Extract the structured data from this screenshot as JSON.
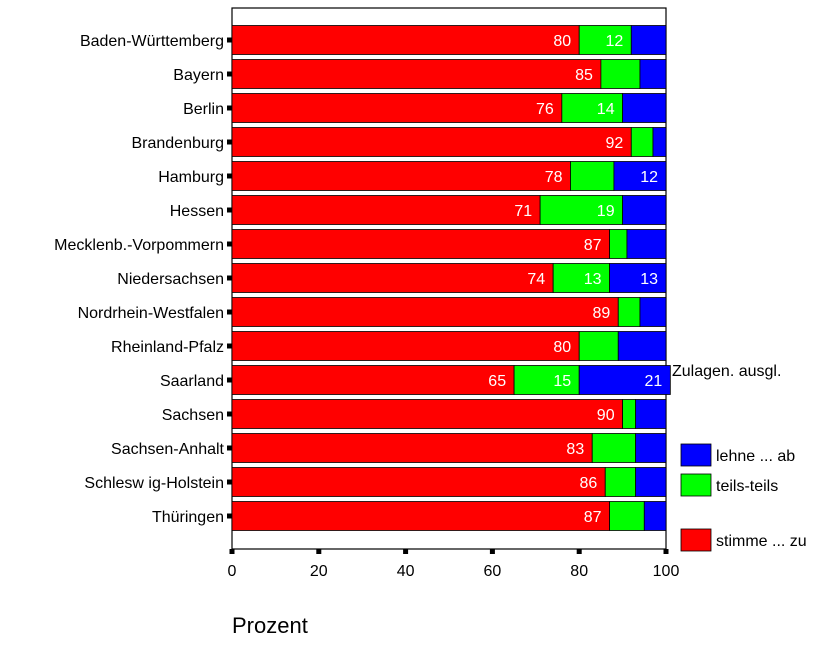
{
  "chart_data": {
    "type": "bar",
    "orientation": "horizontal",
    "stacked": true,
    "categories": [
      "Baden-Württemberg",
      "Bayern",
      "Berlin",
      "Brandenburg",
      "Hamburg",
      "Hessen",
      "Mecklenb.-Vorpommern",
      "Niedersachsen",
      "Nordrhein-Westfalen",
      "Rheinland-Pfalz",
      "Saarland",
      "Sachsen",
      "Sachsen-Anhalt",
      "Schlesw ig-Holstein",
      "Thüringen"
    ],
    "series": [
      {
        "name": "stimme ... zu",
        "color": "#ff0000",
        "values": [
          80,
          85,
          76,
          92,
          78,
          71,
          87,
          74,
          89,
          80,
          65,
          90,
          83,
          86,
          87
        ],
        "labels": [
          "80",
          "85",
          "76",
          "92",
          "78",
          "71",
          "87",
          "74",
          "89",
          "80",
          "65",
          "90",
          "83",
          "86",
          "87"
        ]
      },
      {
        "name": "teils-teils",
        "color": "#00ff00",
        "values": [
          12,
          9,
          14,
          5,
          10,
          19,
          4,
          13,
          5,
          9,
          15,
          3,
          10,
          7,
          8
        ],
        "labels": [
          "12",
          "",
          "14",
          "",
          "",
          "19",
          "",
          "13",
          "",
          "",
          "15",
          "",
          "",
          "",
          ""
        ]
      },
      {
        "name": "lehne ... ab",
        "color": "#0000ff",
        "values": [
          8,
          6,
          10,
          3,
          12,
          10,
          9,
          13,
          6,
          11,
          21,
          7,
          7,
          7,
          5
        ],
        "labels": [
          "",
          "",
          "",
          "",
          "12",
          "",
          "",
          "13",
          "",
          "",
          "21",
          "",
          "",
          "",
          ""
        ]
      }
    ],
    "xlabel": "Prozent",
    "xlim": [
      0,
      100
    ],
    "xticks": [
      "0",
      "20",
      "40",
      "60",
      "80",
      "100"
    ],
    "legend": {
      "title": "Zulagen. ausgl.",
      "placement": "right",
      "items": [
        "lehne ... ab",
        "teils-teils",
        "stimme ... zu"
      ]
    },
    "grid": false
  }
}
